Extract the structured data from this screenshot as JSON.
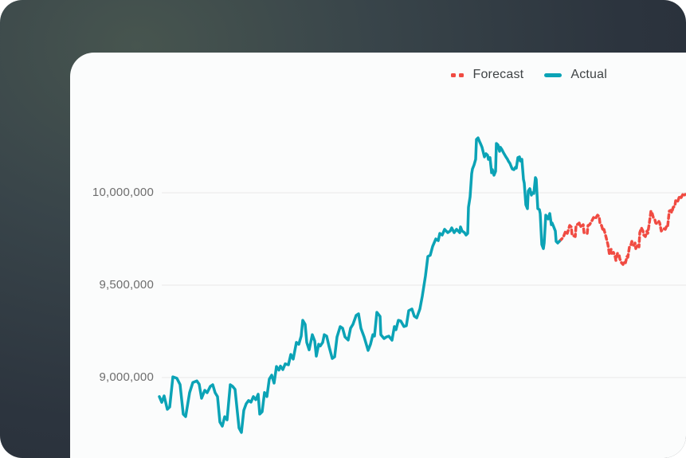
{
  "colors": {
    "background_gradient": [
      "#47554f",
      "#39454a",
      "#2c343e",
      "#262d37"
    ],
    "card_background": "#fbfcfc",
    "gridline": "#e8e9e9",
    "tick_text": "#6e6e6e",
    "legend_text": "#3f4345",
    "forecast_red": "#f04b42",
    "actual_teal": "#0ba3b6"
  },
  "legend": {
    "items": [
      {
        "label": "Forecast",
        "style": "dashed",
        "color": "#f04b42"
      },
      {
        "label": "Actual",
        "style": "solid",
        "color": "#0ba3b6"
      }
    ]
  },
  "chart_data": {
    "type": "line",
    "title": "",
    "xlabel": "",
    "ylabel": "",
    "x_note": "time axis, tick labels not visible in cropped view; x stored as horizontal pixel position",
    "ylim_visible": [
      8565000,
      10760000
    ],
    "grid": "horizontal",
    "legend_position": "top-right",
    "yticks": [
      {
        "label": "10,000,000",
        "value": 10000000
      },
      {
        "label": "9,500,000",
        "value": 9500000
      },
      {
        "label": "9,000,000",
        "value": 9000000
      }
    ],
    "series": [
      {
        "name": "Forecast",
        "color": "#f04b42",
        "style": "dashed",
        "points": [
          [
            702,
            9737000
          ],
          [
            705,
            9750000
          ],
          [
            707,
            9759000
          ],
          [
            710,
            9793000
          ],
          [
            712,
            9780000
          ],
          [
            715,
            9823000
          ],
          [
            717,
            9815000
          ],
          [
            718,
            9771000
          ],
          [
            722,
            9763000
          ],
          [
            723,
            9823000
          ],
          [
            727,
            9836000
          ],
          [
            728,
            9815000
          ],
          [
            732,
            9827000
          ],
          [
            733,
            9784000
          ],
          [
            737,
            9780000
          ],
          [
            738,
            9823000
          ],
          [
            740,
            9827000
          ],
          [
            743,
            9849000
          ],
          [
            745,
            9866000
          ],
          [
            747,
            9858000
          ],
          [
            750,
            9879000
          ],
          [
            752,
            9871000
          ],
          [
            753,
            9836000
          ],
          [
            755,
            9823000
          ],
          [
            757,
            9793000
          ],
          [
            758,
            9802000
          ],
          [
            760,
            9771000
          ],
          [
            763,
            9720000
          ],
          [
            765,
            9664000
          ],
          [
            767,
            9694000
          ],
          [
            768,
            9672000
          ],
          [
            770,
            9677000
          ],
          [
            772,
            9655000
          ],
          [
            773,
            9634000
          ],
          [
            775,
            9672000
          ],
          [
            777,
            9664000
          ],
          [
            778,
            9642000
          ],
          [
            780,
            9621000
          ],
          [
            782,
            9612000
          ],
          [
            783,
            9629000
          ],
          [
            785,
            9621000
          ],
          [
            787,
            9655000
          ],
          [
            788,
            9651000
          ],
          [
            790,
            9707000
          ],
          [
            792,
            9720000
          ],
          [
            793,
            9737000
          ],
          [
            795,
            9716000
          ],
          [
            797,
            9728000
          ],
          [
            798,
            9698000
          ],
          [
            800,
            9720000
          ],
          [
            802,
            9707000
          ],
          [
            803,
            9784000
          ],
          [
            805,
            9810000
          ],
          [
            807,
            9793000
          ],
          [
            808,
            9771000
          ],
          [
            810,
            9763000
          ],
          [
            812,
            9793000
          ],
          [
            813,
            9780000
          ],
          [
            815,
            9836000
          ],
          [
            817,
            9901000
          ],
          [
            818,
            9897000
          ],
          [
            820,
            9866000
          ],
          [
            822,
            9853000
          ],
          [
            823,
            9836000
          ],
          [
            825,
            9832000
          ],
          [
            827,
            9845000
          ],
          [
            828,
            9836000
          ],
          [
            830,
            9793000
          ],
          [
            832,
            9802000
          ],
          [
            833,
            9806000
          ],
          [
            835,
            9802000
          ],
          [
            837,
            9823000
          ],
          [
            838,
            9819000
          ],
          [
            840,
            9901000
          ],
          [
            842,
            9905000
          ],
          [
            843,
            9892000
          ],
          [
            845,
            9922000
          ],
          [
            847,
            9927000
          ],
          [
            848,
            9957000
          ],
          [
            850,
            9948000
          ],
          [
            852,
            9970000
          ],
          [
            853,
            9983000
          ],
          [
            855,
            9974000
          ],
          [
            857,
            9991000
          ],
          [
            858,
            9983000
          ],
          [
            860,
            9991000
          ]
        ]
      },
      {
        "name": "Actual",
        "color": "#0ba3b6",
        "style": "solid",
        "points": [
          [
            200,
            8897000
          ],
          [
            203,
            8866000
          ],
          [
            206,
            8901000
          ],
          [
            210,
            8828000
          ],
          [
            213,
            8841000
          ],
          [
            217,
            9004000
          ],
          [
            222,
            8996000
          ],
          [
            226,
            8962000
          ],
          [
            230,
            8802000
          ],
          [
            233,
            8789000
          ],
          [
            238,
            8919000
          ],
          [
            242,
            8973000
          ],
          [
            247,
            8982000
          ],
          [
            250,
            8964000
          ],
          [
            253,
            8888000
          ],
          [
            257,
            8931000
          ],
          [
            260,
            8918000
          ],
          [
            264,
            8952000
          ],
          [
            267,
            8961000
          ],
          [
            270,
            8918000
          ],
          [
            273,
            8897000
          ],
          [
            276,
            8759000
          ],
          [
            279,
            8737000
          ],
          [
            282,
            8788000
          ],
          [
            285,
            8771000
          ],
          [
            289,
            8961000
          ],
          [
            292,
            8952000
          ],
          [
            295,
            8936000
          ],
          [
            298,
            8810000
          ],
          [
            300,
            8727000
          ],
          [
            303,
            8703000
          ],
          [
            306,
            8823000
          ],
          [
            309,
            8858000
          ],
          [
            312,
            8876000
          ],
          [
            315,
            8867000
          ],
          [
            318,
            8897000
          ],
          [
            321,
            8880000
          ],
          [
            324,
            8910000
          ],
          [
            326,
            8802000
          ],
          [
            329,
            8815000
          ],
          [
            332,
            8919000
          ],
          [
            335,
            8897000
          ],
          [
            338,
            8992000
          ],
          [
            341,
            9013000
          ],
          [
            344,
            8970000
          ],
          [
            347,
            9060000
          ],
          [
            350,
            9040000
          ],
          [
            352,
            9062000
          ],
          [
            355,
            9043000
          ],
          [
            358,
            9074000
          ],
          [
            362,
            9069000
          ],
          [
            365,
            9125000
          ],
          [
            368,
            9100000
          ],
          [
            372,
            9190000
          ],
          [
            375,
            9180000
          ],
          [
            378,
            9224000
          ],
          [
            380,
            9310000
          ],
          [
            383,
            9288000
          ],
          [
            385,
            9190000
          ],
          [
            388,
            9150000
          ],
          [
            392,
            9232000
          ],
          [
            395,
            9198000
          ],
          [
            397,
            9116000
          ],
          [
            400,
            9180000
          ],
          [
            402,
            9171000
          ],
          [
            405,
            9190000
          ],
          [
            407,
            9232000
          ],
          [
            410,
            9224000
          ],
          [
            413,
            9168000
          ],
          [
            417,
            9103000
          ],
          [
            420,
            9112000
          ],
          [
            423,
            9220000
          ],
          [
            427,
            9276000
          ],
          [
            430,
            9267000
          ],
          [
            433,
            9220000
          ],
          [
            437,
            9203000
          ],
          [
            440,
            9267000
          ],
          [
            443,
            9288000
          ],
          [
            447,
            9336000
          ],
          [
            450,
            9345000
          ],
          [
            453,
            9267000
          ],
          [
            457,
            9220000
          ],
          [
            462,
            9147000
          ],
          [
            465,
            9180000
          ],
          [
            468,
            9232000
          ],
          [
            470,
            9224000
          ],
          [
            473,
            9353000
          ],
          [
            477,
            9331000
          ],
          [
            478,
            9232000
          ],
          [
            482,
            9211000
          ],
          [
            485,
            9220000
          ],
          [
            488,
            9224000
          ],
          [
            492,
            9202000
          ],
          [
            495,
            9276000
          ],
          [
            497,
            9259000
          ],
          [
            500,
            9310000
          ],
          [
            503,
            9306000
          ],
          [
            507,
            9276000
          ],
          [
            510,
            9280000
          ],
          [
            513,
            9362000
          ],
          [
            517,
            9371000
          ],
          [
            520,
            9332000
          ],
          [
            523,
            9323000
          ],
          [
            527,
            9371000
          ],
          [
            530,
            9440000
          ],
          [
            534,
            9550000
          ],
          [
            537,
            9655000
          ],
          [
            540,
            9662000
          ],
          [
            543,
            9710000
          ],
          [
            547,
            9750000
          ],
          [
            550,
            9741000
          ],
          [
            552,
            9780000
          ],
          [
            555,
            9771000
          ],
          [
            558,
            9802000
          ],
          [
            562,
            9784000
          ],
          [
            565,
            9793000
          ],
          [
            567,
            9810000
          ],
          [
            570,
            9784000
          ],
          [
            573,
            9802000
          ],
          [
            577,
            9784000
          ],
          [
            578,
            9815000
          ],
          [
            580,
            9793000
          ],
          [
            583,
            9784000
          ],
          [
            585,
            9771000
          ],
          [
            587,
            9780000
          ],
          [
            588,
            9922000
          ],
          [
            590,
            9978000
          ],
          [
            592,
            10103000
          ],
          [
            593,
            10129000
          ],
          [
            595,
            10151000
          ],
          [
            597,
            10181000
          ],
          [
            598,
            10289000
          ],
          [
            600,
            10297000
          ],
          [
            602,
            10276000
          ],
          [
            603,
            10267000
          ],
          [
            605,
            10246000
          ],
          [
            608,
            10194000
          ],
          [
            610,
            10211000
          ],
          [
            612,
            10203000
          ],
          [
            613,
            10181000
          ],
          [
            615,
            10190000
          ],
          [
            617,
            10108000
          ],
          [
            618,
            10125000
          ],
          [
            620,
            10095000
          ],
          [
            622,
            10116000
          ],
          [
            623,
            10267000
          ],
          [
            625,
            10259000
          ],
          [
            627,
            10224000
          ],
          [
            628,
            10246000
          ],
          [
            630,
            10233000
          ],
          [
            632,
            10216000
          ],
          [
            635,
            10194000
          ],
          [
            637,
            10181000
          ],
          [
            638,
            10172000
          ],
          [
            640,
            10159000
          ],
          [
            642,
            10138000
          ],
          [
            643,
            10129000
          ],
          [
            645,
            10125000
          ],
          [
            647,
            10138000
          ],
          [
            648,
            10133000
          ],
          [
            650,
            10190000
          ],
          [
            652,
            10194000
          ],
          [
            653,
            10172000
          ],
          [
            655,
            10181000
          ],
          [
            657,
            10073000
          ],
          [
            658,
            10052000
          ],
          [
            660,
            9935000
          ],
          [
            662,
            9914000
          ],
          [
            663,
            10009000
          ],
          [
            665,
            10022000
          ],
          [
            667,
            9987000
          ],
          [
            668,
            10000000
          ],
          [
            670,
            9996000
          ],
          [
            672,
            10082000
          ],
          [
            673,
            10073000
          ],
          [
            675,
            9914000
          ],
          [
            677,
            9909000
          ],
          [
            678,
            9888000
          ],
          [
            680,
            9720000
          ],
          [
            682,
            9698000
          ],
          [
            683,
            9728000
          ],
          [
            685,
            9879000
          ],
          [
            687,
            9866000
          ],
          [
            688,
            9858000
          ],
          [
            690,
            9888000
          ],
          [
            692,
            9827000
          ],
          [
            693,
            9836000
          ],
          [
            695,
            9815000
          ],
          [
            697,
            9793000
          ],
          [
            698,
            9737000
          ],
          [
            700,
            9728000
          ],
          [
            702,
            9737000
          ]
        ]
      }
    ]
  }
}
